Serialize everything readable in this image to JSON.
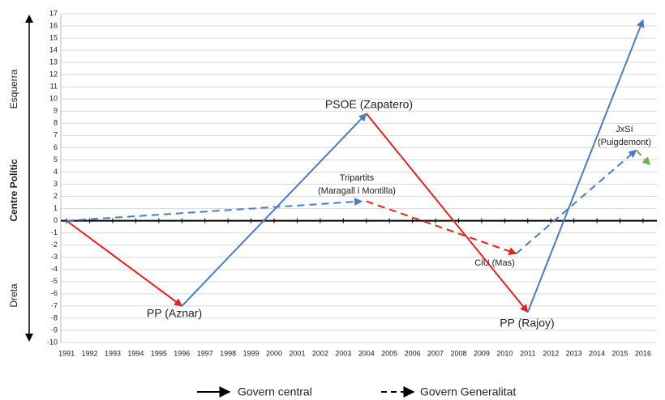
{
  "chart_data": {
    "type": "line",
    "xlim": [
      1990.75,
      2016.6
    ],
    "xticks": [
      1991,
      1992,
      1993,
      1994,
      1995,
      1996,
      1997,
      1998,
      1999,
      2000,
      2001,
      2002,
      2003,
      2004,
      2005,
      2006,
      2007,
      2008,
      2009,
      2010,
      2011,
      2012,
      2013,
      2014,
      2015,
      2016
    ],
    "ylim": [
      -10,
      17
    ],
    "yticks": [
      -10,
      -9,
      -8,
      -7,
      -6,
      -5,
      -4,
      -3,
      -2,
      -1,
      0,
      1,
      2,
      3,
      4,
      5,
      6,
      7,
      8,
      9,
      10,
      11,
      12,
      13,
      14,
      15,
      16,
      17
    ],
    "grid": true,
    "side_labels": [
      "Esquerra",
      "Centre Polític",
      "Dreta"
    ],
    "series": [
      {
        "name": "Govern central",
        "style": "solid",
        "segments": [
          {
            "color": "#e8211f",
            "x": [
              1991,
              1996
            ],
            "values": [
              0,
              -7
            ]
          },
          {
            "color": "#4a7cc7",
            "x": [
              1996,
              2004
            ],
            "values": [
              -7,
              8.8
            ]
          },
          {
            "color": "#e8211f",
            "x": [
              2004,
              2011
            ],
            "values": [
              8.8,
              -7.5
            ]
          },
          {
            "color": "#4a7cc7",
            "x": [
              2011,
              2016
            ],
            "values": [
              -7.5,
              16.5
            ]
          }
        ]
      },
      {
        "name": "Govern Generalitat",
        "style": "dashed",
        "segments": [
          {
            "color": "#4a7cc7",
            "x": [
              1991,
              2003.8
            ],
            "values": [
              0,
              1.6
            ]
          },
          {
            "color": "#e8211f",
            "x": [
              2004,
              2010.5
            ],
            "values": [
              1.6,
              -2.7
            ]
          },
          {
            "color": "#4a7cc7",
            "x": [
              2010.5,
              2015.7
            ],
            "values": [
              -2.7,
              5.8
            ]
          },
          {
            "color": "#6ab04c",
            "x": [
              2015.7,
              2016.3
            ],
            "values": [
              5.8,
              4.6
            ]
          }
        ]
      }
    ],
    "annotations": [
      {
        "lines": [
          "PP (Aznar)"
        ]
      },
      {
        "lines": [
          "PSOE (Zapatero)"
        ]
      },
      {
        "lines": [
          "PP (Rajoy)"
        ]
      },
      {
        "lines": [
          "Tripartits",
          "(Maragall i Montilla)"
        ]
      },
      {
        "lines": [
          "CiU (Mas)"
        ]
      },
      {
        "lines": [
          "JxSí",
          "(Puigdemont)"
        ]
      }
    ]
  }
}
